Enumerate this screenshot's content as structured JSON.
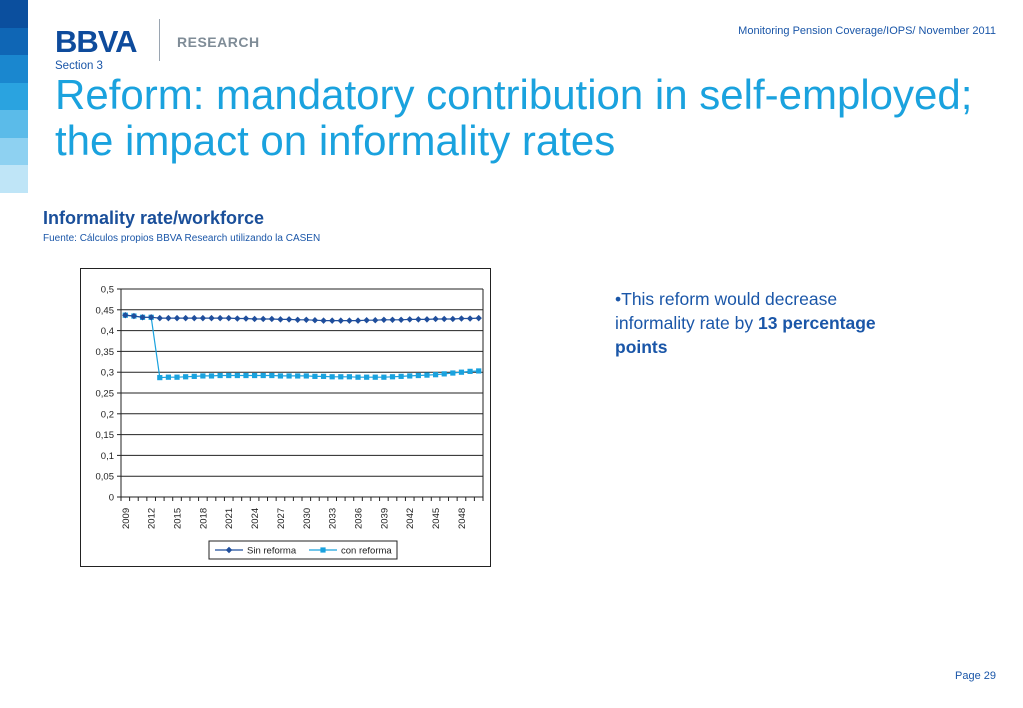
{
  "header": {
    "logo_text": "BBVA",
    "logo_research": "RESEARCH",
    "note": "Monitoring Pension Coverage/IOPS/ November 2011"
  },
  "section_label": "Section 3",
  "title": "Reform: mandatory contribution in self-employed; the impact on informality rates",
  "chart_heading": "Informality rate/workforce",
  "chart_source": "Fuente: Cálculos propios BBVA Research utilizando la CASEN",
  "bullet": {
    "prefix": "•This reform would decrease informality rate by ",
    "emphasis": "13 percentage points"
  },
  "page": "Page 29",
  "side_strip_colors": [
    "#0b4f9e",
    "#0f66b5",
    "#1a87cf",
    "#2aa3e0",
    "#5bbbe9",
    "#8ed1f1",
    "#bfe5f7"
  ],
  "chart_data": {
    "type": "line",
    "x": [
      2009,
      2010,
      2011,
      2012,
      2013,
      2014,
      2015,
      2016,
      2017,
      2018,
      2019,
      2020,
      2021,
      2022,
      2023,
      2024,
      2025,
      2026,
      2027,
      2028,
      2029,
      2030,
      2031,
      2032,
      2033,
      2034,
      2035,
      2036,
      2037,
      2038,
      2039,
      2040,
      2041,
      2042,
      2043,
      2044,
      2045,
      2046,
      2047,
      2048,
      2049,
      2050
    ],
    "x_tick_labels": [
      "2009",
      "2012",
      "2015",
      "2018",
      "2021",
      "2024",
      "2027",
      "2030",
      "2033",
      "2036",
      "2039",
      "2042",
      "2045",
      "2048"
    ],
    "y_tick_labels": [
      "0",
      "0,05",
      "0,1",
      "0,15",
      "0,2",
      "0,25",
      "0,3",
      "0,35",
      "0,4",
      "0,45",
      "0,5"
    ],
    "ylim": [
      0,
      0.5
    ],
    "series": [
      {
        "name": "Sin reforma",
        "color": "#1f4e9c",
        "marker": "diamond",
        "values": [
          0.437,
          0.435,
          0.432,
          0.432,
          0.43,
          0.43,
          0.43,
          0.43,
          0.43,
          0.43,
          0.43,
          0.43,
          0.43,
          0.429,
          0.429,
          0.428,
          0.428,
          0.428,
          0.427,
          0.427,
          0.426,
          0.426,
          0.425,
          0.424,
          0.424,
          0.424,
          0.424,
          0.424,
          0.425,
          0.425,
          0.426,
          0.426,
          0.426,
          0.427,
          0.427,
          0.427,
          0.428,
          0.428,
          0.428,
          0.429,
          0.429,
          0.43
        ]
      },
      {
        "name": "con reforma",
        "color": "#1aa2de",
        "marker": "square",
        "values": [
          0.437,
          0.435,
          0.432,
          0.432,
          0.287,
          0.288,
          0.288,
          0.289,
          0.29,
          0.291,
          0.291,
          0.292,
          0.292,
          0.292,
          0.292,
          0.292,
          0.292,
          0.292,
          0.291,
          0.291,
          0.291,
          0.291,
          0.29,
          0.29,
          0.289,
          0.289,
          0.289,
          0.288,
          0.288,
          0.288,
          0.288,
          0.289,
          0.29,
          0.291,
          0.292,
          0.293,
          0.294,
          0.296,
          0.298,
          0.3,
          0.302,
          0.303
        ]
      }
    ],
    "grid": true,
    "legend": "bottom"
  }
}
